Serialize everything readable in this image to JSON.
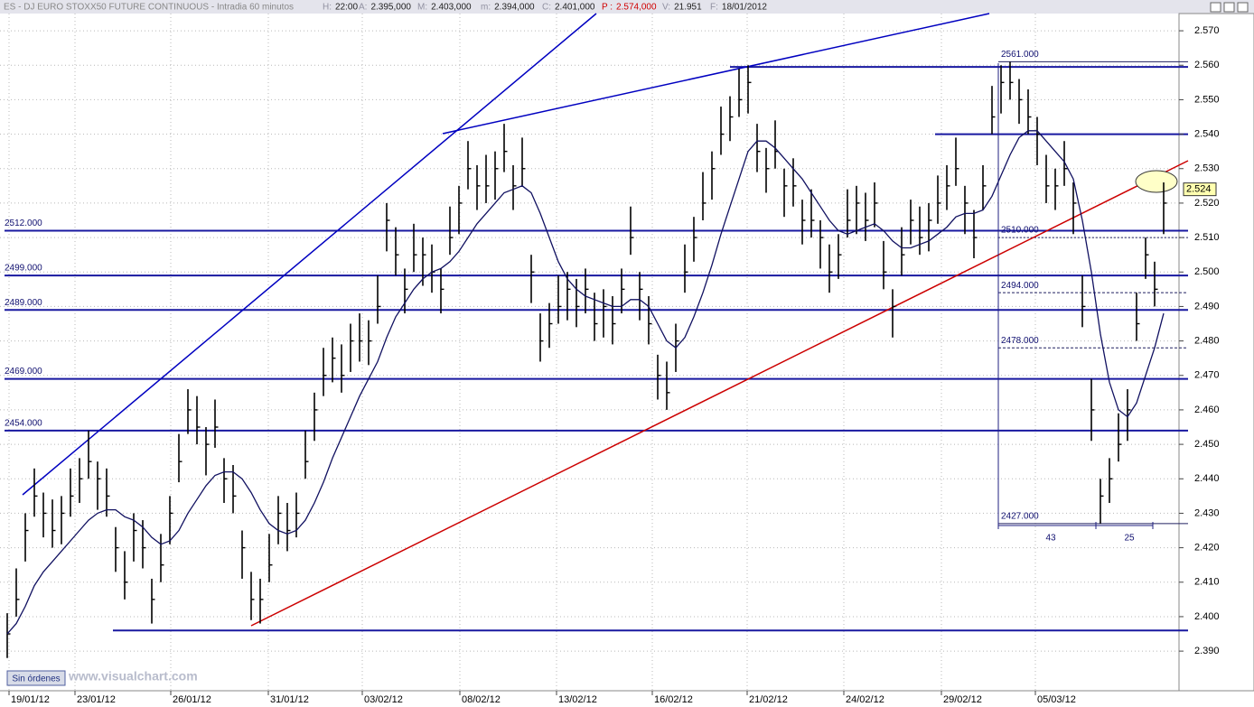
{
  "header": {
    "title": "ES - DJ EURO STOXX50 FUTURE CONTINUOUS - Intradia 60 minutos",
    "fields": [
      {
        "key": "H:",
        "value": "22:00"
      },
      {
        "key": "A:",
        "value": "2.395,000"
      },
      {
        "key": "M:",
        "value": "2.403,000"
      },
      {
        "key": "m:",
        "value": "2.394,000"
      },
      {
        "key": "C:",
        "value": "2.401,000"
      },
      {
        "key": "P :",
        "value": "2.574,000"
      },
      {
        "key": "V:",
        "value": "21.951"
      },
      {
        "key": "F:",
        "value": "18/01/2012"
      }
    ]
  },
  "status": "Sin órdenes",
  "watermark": "www.visualchart.com",
  "chart_data": {
    "type": "ohlc",
    "grid": true,
    "color": "#000000",
    "ma_color": "#101060",
    "xlim": [
      -0.8,
      129.7
    ],
    "ylim": [
      2.3785,
      2.575
    ],
    "xticks": [
      {
        "value": 0.2,
        "label": "19/01/12"
      },
      {
        "value": 7.5,
        "label": "23/01/12"
      },
      {
        "value": 18.1,
        "label": "26/01/12"
      },
      {
        "value": 28.9,
        "label": "31/01/12"
      },
      {
        "value": 39.3,
        "label": "03/02/12"
      },
      {
        "value": 50.1,
        "label": "08/02/12"
      },
      {
        "value": 60.8,
        "label": "13/02/12"
      },
      {
        "value": 71.4,
        "label": "16/02/12"
      },
      {
        "value": 81.9,
        "label": "21/02/12"
      },
      {
        "value": 92.6,
        "label": "24/02/12"
      },
      {
        "value": 103.4,
        "label": "29/02/12"
      },
      {
        "value": 113.8,
        "label": "05/03/12"
      }
    ],
    "yticks": [
      {
        "value": 2.39,
        "label": "2.390"
      },
      {
        "value": 2.4,
        "label": "2.400"
      },
      {
        "value": 2.41,
        "label": "2.410"
      },
      {
        "value": 2.42,
        "label": "2.420"
      },
      {
        "value": 2.43,
        "label": "2.430"
      },
      {
        "value": 2.44,
        "label": "2.440"
      },
      {
        "value": 2.45,
        "label": "2.450"
      },
      {
        "value": 2.46,
        "label": "2.460"
      },
      {
        "value": 2.47,
        "label": "2.470"
      },
      {
        "value": 2.48,
        "label": "2.480"
      },
      {
        "value": 2.49,
        "label": "2.490"
      },
      {
        "value": 2.5,
        "label": "2.500"
      },
      {
        "value": 2.51,
        "label": "2.510"
      },
      {
        "value": 2.52,
        "label": "2.520"
      },
      {
        "value": 2.53,
        "label": "2.530"
      },
      {
        "value": 2.54,
        "label": "2.540"
      },
      {
        "value": 2.55,
        "label": "2.550"
      },
      {
        "value": 2.56,
        "label": "2.560"
      },
      {
        "value": 2.57,
        "label": "2.570"
      }
    ],
    "high": [
      2.401,
      2.414,
      2.43,
      2.443,
      2.436,
      2.434,
      2.435,
      2.443,
      2.446,
      2.454,
      2.445,
      2.443,
      2.426,
      2.419,
      2.43,
      2.428,
      2.411,
      2.424,
      2.435,
      2.453,
      2.466,
      2.464,
      2.455,
      2.463,
      2.446,
      2.444,
      2.425,
      2.413,
      2.411,
      2.424,
      2.435,
      2.433,
      2.436,
      2.454,
      2.465,
      2.478,
      2.481,
      2.479,
      2.485,
      2.488,
      2.486,
      2.499,
      2.52,
      2.513,
      2.501,
      2.514,
      2.51,
      2.508,
      2.501,
      2.519,
      2.525,
      2.538,
      2.531,
      2.534,
      2.535,
      2.543,
      2.531,
      2.539,
      2.505,
      2.488,
      2.491,
      2.499,
      2.5,
      2.498,
      2.501,
      2.494,
      2.495,
      2.493,
      2.501,
      2.519,
      2.5,
      2.493,
      2.476,
      2.474,
      2.485,
      2.508,
      2.516,
      2.529,
      2.535,
      2.548,
      2.551,
      2.559,
      2.56,
      2.543,
      2.536,
      2.544,
      2.53,
      2.533,
      2.521,
      2.524,
      2.515,
      2.508,
      2.511,
      2.524,
      2.525,
      2.523,
      2.526,
      2.509,
      2.495,
      2.513,
      2.521,
      2.519,
      2.52,
      2.528,
      2.531,
      2.539,
      2.525,
      2.518,
      2.531,
      2.554,
      2.56,
      2.561,
      2.556,
      2.553,
      2.545,
      2.534,
      2.53,
      2.538,
      2.526,
      2.499,
      2.469,
      2.44,
      2.446,
      2.459,
      2.466,
      2.494,
      2.51,
      2.503,
      2.526
    ],
    "low": [
      2.388,
      2.4,
      2.416,
      2.429,
      2.423,
      2.42,
      2.421,
      2.429,
      2.433,
      2.44,
      2.431,
      2.429,
      2.413,
      2.405,
      2.416,
      2.414,
      2.398,
      2.41,
      2.421,
      2.439,
      2.453,
      2.45,
      2.441,
      2.449,
      2.433,
      2.43,
      2.411,
      2.399,
      2.398,
      2.41,
      2.421,
      2.419,
      2.423,
      2.44,
      2.451,
      2.464,
      2.468,
      2.465,
      2.471,
      2.474,
      2.473,
      2.485,
      2.506,
      2.499,
      2.488,
      2.5,
      2.496,
      2.494,
      2.488,
      2.505,
      2.511,
      2.524,
      2.518,
      2.52,
      2.521,
      2.529,
      2.518,
      2.525,
      2.491,
      2.474,
      2.478,
      2.485,
      2.486,
      2.484,
      2.488,
      2.48,
      2.481,
      2.479,
      2.488,
      2.505,
      2.486,
      2.479,
      2.463,
      2.46,
      2.471,
      2.494,
      2.503,
      2.515,
      2.521,
      2.534,
      2.538,
      2.545,
      2.546,
      2.529,
      2.523,
      2.53,
      2.516,
      2.519,
      2.508,
      2.51,
      2.501,
      2.494,
      2.498,
      2.51,
      2.511,
      2.509,
      2.513,
      2.495,
      2.481,
      2.499,
      2.508,
      2.505,
      2.506,
      2.514,
      2.518,
      2.525,
      2.511,
      2.504,
      2.518,
      2.54,
      2.546,
      2.55,
      2.543,
      2.54,
      2.531,
      2.52,
      2.518,
      2.525,
      2.511,
      2.484,
      2.451,
      2.427,
      2.433,
      2.445,
      2.451,
      2.48,
      2.498,
      2.49,
      2.511
    ],
    "close": [
      2.395,
      2.405,
      2.425,
      2.435,
      2.43,
      2.425,
      2.43,
      2.435,
      2.44,
      2.445,
      2.44,
      2.435,
      2.42,
      2.41,
      2.425,
      2.42,
      2.405,
      2.415,
      2.43,
      2.445,
      2.46,
      2.455,
      2.45,
      2.455,
      2.44,
      2.435,
      2.42,
      2.405,
      2.405,
      2.415,
      2.43,
      2.425,
      2.43,
      2.445,
      2.46,
      2.47,
      2.475,
      2.47,
      2.48,
      2.48,
      2.48,
      2.49,
      2.515,
      2.505,
      2.495,
      2.505,
      2.505,
      2.5,
      2.495,
      2.51,
      2.52,
      2.53,
      2.525,
      2.525,
      2.53,
      2.535,
      2.525,
      2.53,
      2.5,
      2.48,
      2.485,
      2.49,
      2.495,
      2.49,
      2.495,
      2.485,
      2.49,
      2.485,
      2.495,
      2.51,
      2.495,
      2.485,
      2.47,
      2.465,
      2.48,
      2.5,
      2.51,
      2.52,
      2.53,
      2.54,
      2.545,
      2.55,
      2.555,
      2.535,
      2.53,
      2.535,
      2.525,
      2.525,
      2.515,
      2.515,
      2.51,
      2.5,
      2.505,
      2.515,
      2.52,
      2.515,
      2.52,
      2.5,
      2.49,
      2.505,
      2.515,
      2.51,
      2.515,
      2.52,
      2.525,
      2.53,
      2.52,
      2.51,
      2.525,
      2.545,
      2.555,
      2.555,
      2.55,
      2.545,
      2.54,
      2.525,
      2.525,
      2.53,
      2.52,
      2.49,
      2.46,
      2.435,
      2.44,
      2.45,
      2.46,
      2.485,
      2.505,
      2.495,
      2.52
    ],
    "ma": [
      2.395,
      2.398,
      2.403,
      2.409,
      2.413,
      2.416,
      2.419,
      2.422,
      2.425,
      2.428,
      2.43,
      2.431,
      2.431,
      2.429,
      2.428,
      2.426,
      2.423,
      2.421,
      2.422,
      2.425,
      2.43,
      2.434,
      2.438,
      2.441,
      2.442,
      2.442,
      2.44,
      2.436,
      2.431,
      2.427,
      2.425,
      2.424,
      2.425,
      2.428,
      2.433,
      2.439,
      2.446,
      2.452,
      2.458,
      2.464,
      2.469,
      2.474,
      2.481,
      2.487,
      2.491,
      2.495,
      2.498,
      2.5,
      2.501,
      2.503,
      2.506,
      2.51,
      2.514,
      2.517,
      2.52,
      2.523,
      2.524,
      2.525,
      2.523,
      2.517,
      2.51,
      2.503,
      2.498,
      2.495,
      2.493,
      2.492,
      2.491,
      2.49,
      2.49,
      2.492,
      2.492,
      2.49,
      2.485,
      2.48,
      2.478,
      2.481,
      2.487,
      2.494,
      2.502,
      2.511,
      2.519,
      2.527,
      2.535,
      2.538,
      2.538,
      2.536,
      2.533,
      2.53,
      2.527,
      2.523,
      2.519,
      2.515,
      2.512,
      2.511,
      2.512,
      2.513,
      2.514,
      2.512,
      2.509,
      2.507,
      2.507,
      2.508,
      2.509,
      2.511,
      2.513,
      2.516,
      2.517,
      2.517,
      2.518,
      2.522,
      2.528,
      2.534,
      2.539,
      2.541,
      2.541,
      2.538,
      2.535,
      2.532,
      2.527,
      2.515,
      2.5,
      2.482,
      2.468,
      2.46,
      2.458,
      2.462,
      2.47,
      2.478,
      2.488
    ],
    "left_levels": [
      {
        "value": 2.512,
        "label": "2512.000"
      },
      {
        "value": 2.499,
        "label": "2499.000"
      },
      {
        "value": 2.489,
        "label": "2489.000"
      },
      {
        "value": 2.469,
        "label": "2469.000"
      },
      {
        "value": 2.454,
        "label": "2454.000"
      }
    ],
    "right_levels": [
      {
        "value": 2.561,
        "label": "2561.000"
      },
      {
        "value": 2.51,
        "label": "2510.000"
      },
      {
        "value": 2.494,
        "label": "2494.000"
      },
      {
        "value": 2.478,
        "label": "2478.000"
      },
      {
        "value": 2.427,
        "label": "2427.000"
      }
    ],
    "lines": [
      2.396,
      2.5595,
      2.54
    ],
    "measurements": [
      43,
      25
    ],
    "last_price": {
      "value": 2.524,
      "label": "2.524"
    }
  }
}
